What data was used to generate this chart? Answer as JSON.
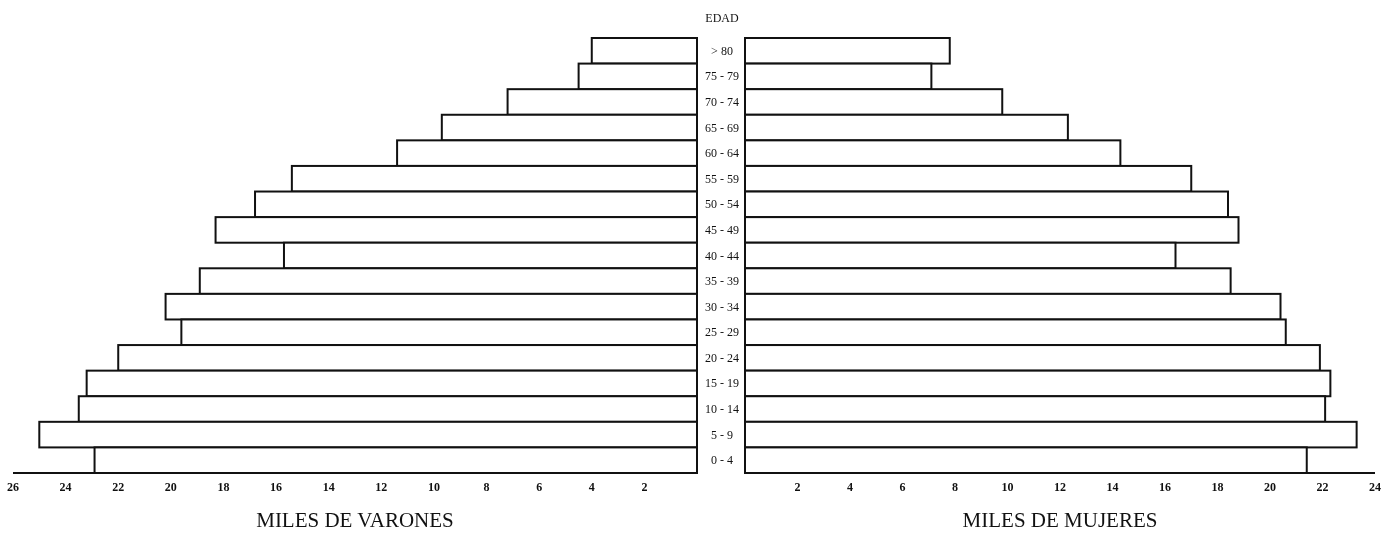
{
  "chart_data": [
    {
      "type": "bar",
      "orientation": "horizontal",
      "xlabel": "MILES DE VARONES",
      "categories": [
        "> 80",
        "75 - 79",
        "70 - 74",
        "65 - 69",
        "60 - 64",
        "55 - 59",
        "50 - 54",
        "45 - 49",
        "40 - 44",
        "35 - 39",
        "30 - 34",
        "25 - 29",
        "20 - 24",
        "15 - 19",
        "10 - 14",
        "5 - 9",
        "0 - 4"
      ],
      "values": [
        4.0,
        4.5,
        7.2,
        9.7,
        11.4,
        15.4,
        16.8,
        18.3,
        15.7,
        18.9,
        20.2,
        19.6,
        22.0,
        23.2,
        23.5,
        25.0,
        22.9
      ],
      "color": "#ffffff",
      "xlim": [
        26,
        0
      ],
      "xticks": [
        26,
        24,
        22,
        20,
        18,
        16,
        14,
        12,
        10,
        8,
        6,
        4,
        2
      ],
      "tick_labels": "x",
      "grid": false
    },
    {
      "type": "bar",
      "orientation": "horizontal",
      "xlabel": "MILES DE MUJERES",
      "ylabel": "EDAD",
      "categories": [
        "> 80",
        "75 - 79",
        "70 - 74",
        "65 - 69",
        "60 - 64",
        "55 - 59",
        "50 - 54",
        "45 - 49",
        "40 - 44",
        "35 - 39",
        "30 - 34",
        "25 - 29",
        "20 - 24",
        "15 - 19",
        "10 - 14",
        "5 - 9",
        "0 - 4"
      ],
      "values": [
        7.8,
        7.1,
        9.8,
        12.3,
        14.3,
        17.0,
        18.4,
        18.8,
        16.4,
        18.5,
        20.4,
        20.6,
        21.9,
        22.3,
        22.1,
        23.3,
        21.4
      ],
      "color": "#ffffff",
      "xlim": [
        0,
        24
      ],
      "xticks": [
        2,
        4,
        6,
        8,
        10,
        12,
        14,
        16,
        18,
        20,
        22,
        24
      ],
      "grid": false
    }
  ]
}
